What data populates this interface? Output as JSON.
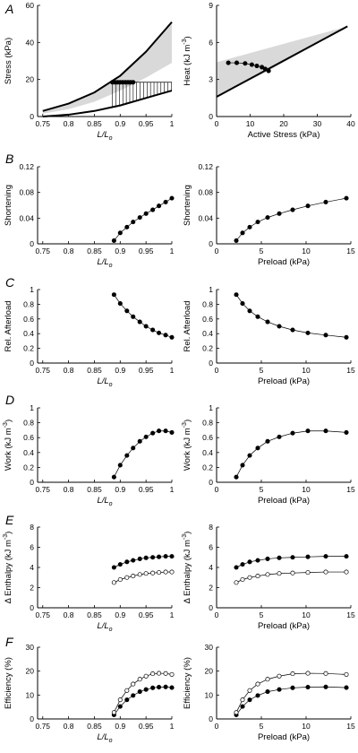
{
  "chart_data": [
    {
      "id": "A-left",
      "panel": "A",
      "type": "line",
      "xlabel": "L/Lo",
      "ylabel": "Stress (kPa)",
      "xlim": [
        0.74,
        1.0
      ],
      "ylim": [
        0,
        60
      ],
      "xticks": [
        "0.75",
        "0.8",
        "0.85",
        "0.9",
        "0.95",
        "1"
      ],
      "yticks": [
        "0",
        "20",
        "40",
        "60"
      ],
      "grid": false,
      "series": [
        {
          "values_x": [
            0.75,
            0.8,
            0.85,
            0.9,
            0.95,
            1.0
          ],
          "values_y": [
            3,
            7,
            13,
            22,
            35,
            51
          ]
        },
        {
          "values_x": [
            0.75,
            0.8,
            0.85,
            0.9,
            0.95,
            1.0
          ],
          "values_y": [
            0,
            1,
            3,
            6,
            10,
            14
          ]
        },
        {
          "values_x": [
            0.885,
            0.89,
            0.895,
            0.9,
            0.905,
            0.91,
            0.915,
            0.92,
            0.925
          ],
          "values_y": [
            18.5,
            18.5,
            18.5,
            18.5,
            18.5,
            18.5,
            18.5,
            18.5,
            18.5
          ]
        }
      ]
    },
    {
      "id": "A-right",
      "panel": "A",
      "type": "line",
      "xlabel": "Active Stress (kPa)",
      "ylabel": "Heat (kJ m-3)",
      "xlim": [
        0,
        40
      ],
      "ylim": [
        0,
        9
      ],
      "xticks": [
        "0",
        "10",
        "20",
        "30",
        "40"
      ],
      "yticks": [
        "0",
        "3",
        "6",
        "9"
      ],
      "grid": false,
      "series": [
        {
          "values_x": [
            0,
            39
          ],
          "values_y": [
            1.6,
            7.3
          ]
        },
        {
          "values_x": [
            3.5,
            6,
            8.5,
            10.5,
            12,
            13.5,
            14.5,
            15.5
          ],
          "values_y": [
            4.35,
            4.35,
            4.3,
            4.2,
            4.1,
            4.0,
            3.85,
            3.7
          ]
        }
      ]
    },
    {
      "id": "B-left",
      "panel": "B",
      "type": "scatter",
      "xlabel": "L/Lo",
      "ylabel": "Shortening",
      "xlim": [
        0.74,
        1.0
      ],
      "ylim": [
        0,
        0.12
      ],
      "xticks": [
        "0.75",
        "0.8",
        "0.85",
        "0.9",
        "0.95",
        "1"
      ],
      "yticks": [
        "0",
        "0.04",
        "0.08",
        "0.12"
      ],
      "grid": false,
      "series": [
        {
          "values_x": [
            0.888,
            0.9,
            0.913,
            0.925,
            0.938,
            0.95,
            0.963,
            0.975,
            0.988,
            1.0
          ],
          "values_y": [
            0.005,
            0.017,
            0.026,
            0.034,
            0.041,
            0.047,
            0.053,
            0.059,
            0.065,
            0.071
          ]
        }
      ]
    },
    {
      "id": "B-right",
      "panel": "B",
      "type": "line",
      "xlabel": "Preload (kPa)",
      "ylabel": "Shortening",
      "xlim": [
        0,
        15
      ],
      "ylim": [
        0,
        0.12
      ],
      "xticks": [
        "0",
        "5",
        "10",
        "15"
      ],
      "yticks": [
        "0",
        "0.04",
        "0.08",
        "0.12"
      ],
      "grid": false,
      "series": [
        {
          "values_x": [
            2.2,
            2.9,
            3.7,
            4.6,
            5.7,
            7.0,
            8.5,
            10.2,
            12.2,
            14.5
          ],
          "values_y": [
            0.005,
            0.017,
            0.026,
            0.034,
            0.041,
            0.047,
            0.053,
            0.059,
            0.065,
            0.071
          ]
        }
      ]
    },
    {
      "id": "C-left",
      "panel": "C",
      "type": "scatter",
      "xlabel": "L/Lo",
      "ylabel": "Rel. Afterload",
      "xlim": [
        0.74,
        1.0
      ],
      "ylim": [
        0,
        1
      ],
      "xticks": [
        "0.75",
        "0.8",
        "0.85",
        "0.9",
        "0.95",
        "1"
      ],
      "yticks": [
        "0",
        "0.2",
        "0.4",
        "0.6",
        "0.8",
        "1"
      ],
      "grid": false,
      "series": [
        {
          "values_x": [
            0.888,
            0.9,
            0.913,
            0.925,
            0.938,
            0.95,
            0.963,
            0.975,
            0.988,
            1.0
          ],
          "values_y": [
            0.93,
            0.81,
            0.71,
            0.63,
            0.56,
            0.5,
            0.45,
            0.41,
            0.38,
            0.35
          ]
        }
      ]
    },
    {
      "id": "C-right",
      "panel": "C",
      "type": "line",
      "xlabel": "Preload (kPa)",
      "ylabel": "Rel. Afterload",
      "xlim": [
        0,
        15
      ],
      "ylim": [
        0,
        1
      ],
      "xticks": [
        "0",
        "5",
        "10",
        "15"
      ],
      "yticks": [
        "0",
        "0.2",
        "0.4",
        "0.6",
        "0.8",
        "1"
      ],
      "grid": false,
      "series": [
        {
          "values_x": [
            2.2,
            2.9,
            3.7,
            4.6,
            5.7,
            7.0,
            8.5,
            10.2,
            12.2,
            14.5
          ],
          "values_y": [
            0.93,
            0.81,
            0.71,
            0.63,
            0.56,
            0.5,
            0.45,
            0.41,
            0.38,
            0.35
          ]
        }
      ]
    },
    {
      "id": "D-left",
      "panel": "D",
      "type": "scatter",
      "xlabel": "L/Lo",
      "ylabel": "Work (kJ m-3)",
      "xlim": [
        0.74,
        1.0
      ],
      "ylim": [
        0,
        1
      ],
      "xticks": [
        "0.75",
        "0.8",
        "0.85",
        "0.9",
        "0.95",
        "1"
      ],
      "yticks": [
        "0",
        "0.2",
        "0.4",
        "0.6",
        "0.8",
        "1"
      ],
      "grid": false,
      "series": [
        {
          "values_x": [
            0.888,
            0.9,
            0.913,
            0.925,
            0.938,
            0.95,
            0.963,
            0.975,
            0.988,
            1.0
          ],
          "values_y": [
            0.07,
            0.23,
            0.36,
            0.46,
            0.55,
            0.61,
            0.66,
            0.69,
            0.69,
            0.67
          ]
        }
      ]
    },
    {
      "id": "D-right",
      "panel": "D",
      "type": "line",
      "xlabel": "Preload (kPa)",
      "ylabel": "Work (kJ m-3)",
      "xlim": [
        0,
        15
      ],
      "ylim": [
        0,
        1
      ],
      "xticks": [
        "0",
        "5",
        "10",
        "15"
      ],
      "yticks": [
        "0",
        "0.2",
        "0.4",
        "0.6",
        "0.8",
        "1"
      ],
      "grid": false,
      "series": [
        {
          "values_x": [
            2.2,
            2.9,
            3.7,
            4.6,
            5.7,
            7.0,
            8.5,
            10.2,
            12.2,
            14.5
          ],
          "values_y": [
            0.07,
            0.23,
            0.36,
            0.46,
            0.55,
            0.61,
            0.66,
            0.69,
            0.69,
            0.67
          ]
        }
      ]
    },
    {
      "id": "E-left",
      "panel": "E",
      "type": "scatter",
      "xlabel": "L/Lo",
      "ylabel": "Δ Enthalpy (kJ m-3)",
      "xlim": [
        0.74,
        1.0
      ],
      "ylim": [
        0,
        8
      ],
      "xticks": [
        "0.75",
        "0.8",
        "0.85",
        "0.9",
        "0.95",
        "1"
      ],
      "yticks": [
        "0",
        "2",
        "4",
        "6",
        "8"
      ],
      "grid": false,
      "series": [
        {
          "marker": "filled",
          "values_x": [
            0.888,
            0.9,
            0.913,
            0.925,
            0.938,
            0.95,
            0.963,
            0.975,
            0.988,
            1.0
          ],
          "values_y": [
            4.0,
            4.3,
            4.55,
            4.7,
            4.85,
            4.95,
            5.0,
            5.05,
            5.1,
            5.1
          ]
        },
        {
          "marker": "open",
          "values_x": [
            0.888,
            0.9,
            0.913,
            0.925,
            0.938,
            0.95,
            0.963,
            0.975,
            0.988,
            1.0
          ],
          "values_y": [
            2.5,
            2.8,
            3.0,
            3.15,
            3.3,
            3.4,
            3.45,
            3.5,
            3.55,
            3.55
          ]
        }
      ]
    },
    {
      "id": "E-right",
      "panel": "E",
      "type": "line",
      "xlabel": "Preload (kPa)",
      "ylabel": "Δ Enthalpy (kJ m-3)",
      "xlim": [
        0,
        15
      ],
      "ylim": [
        0,
        8
      ],
      "xticks": [
        "0",
        "5",
        "10",
        "15"
      ],
      "yticks": [
        "0",
        "2",
        "4",
        "6",
        "8"
      ],
      "grid": false,
      "series": [
        {
          "marker": "filled",
          "values_x": [
            2.2,
            2.9,
            3.7,
            4.6,
            5.7,
            7.0,
            8.5,
            10.2,
            12.2,
            14.5
          ],
          "values_y": [
            4.0,
            4.3,
            4.55,
            4.7,
            4.85,
            4.95,
            5.0,
            5.05,
            5.1,
            5.1
          ]
        },
        {
          "marker": "open",
          "values_x": [
            2.2,
            2.9,
            3.7,
            4.6,
            5.7,
            7.0,
            8.5,
            10.2,
            12.2,
            14.5
          ],
          "values_y": [
            2.5,
            2.8,
            3.0,
            3.15,
            3.3,
            3.4,
            3.45,
            3.5,
            3.55,
            3.55
          ]
        }
      ]
    },
    {
      "id": "F-left",
      "panel": "F",
      "type": "scatter",
      "xlabel": "L/Lo",
      "ylabel": "Efficiency (%)",
      "xlim": [
        0.74,
        1.0
      ],
      "ylim": [
        0,
        30
      ],
      "xticks": [
        "0.75",
        "0.8",
        "0.85",
        "0.9",
        "0.95",
        "1"
      ],
      "yticks": [
        "0",
        "10",
        "20",
        "30"
      ],
      "grid": false,
      "series": [
        {
          "marker": "filled",
          "values_x": [
            0.888,
            0.9,
            0.913,
            0.925,
            0.938,
            0.95,
            0.963,
            0.975,
            0.988,
            1.0
          ],
          "values_y": [
            1.7,
            5.2,
            8.0,
            9.8,
            11.4,
            12.3,
            13.0,
            13.3,
            13.4,
            13.1
          ]
        },
        {
          "marker": "open",
          "values_x": [
            0.888,
            0.9,
            0.913,
            0.925,
            0.938,
            0.95,
            0.963,
            0.975,
            0.988,
            1.0
          ],
          "values_y": [
            2.7,
            8.0,
            11.9,
            14.6,
            16.6,
            17.9,
            18.9,
            19.1,
            19.0,
            18.6
          ]
        }
      ]
    },
    {
      "id": "F-right",
      "panel": "F",
      "type": "line",
      "xlabel": "Preload (kPa)",
      "ylabel": "Efficiency (%)",
      "xlim": [
        0,
        15
      ],
      "ylim": [
        0,
        30
      ],
      "xticks": [
        "0",
        "5",
        "10",
        "15"
      ],
      "yticks": [
        "0",
        "10",
        "20",
        "30"
      ],
      "grid": false,
      "series": [
        {
          "marker": "filled",
          "values_x": [
            2.2,
            2.9,
            3.7,
            4.6,
            5.7,
            7.0,
            8.5,
            10.2,
            12.2,
            14.5
          ],
          "values_y": [
            1.7,
            5.2,
            8.0,
            9.8,
            11.4,
            12.3,
            13.0,
            13.3,
            13.4,
            13.1
          ]
        },
        {
          "marker": "open",
          "values_x": [
            2.2,
            2.9,
            3.7,
            4.6,
            5.7,
            7.0,
            8.5,
            10.2,
            12.2,
            14.5
          ],
          "values_y": [
            2.7,
            8.0,
            11.9,
            14.6,
            16.6,
            17.9,
            18.9,
            19.1,
            19.0,
            18.6
          ]
        }
      ]
    }
  ]
}
